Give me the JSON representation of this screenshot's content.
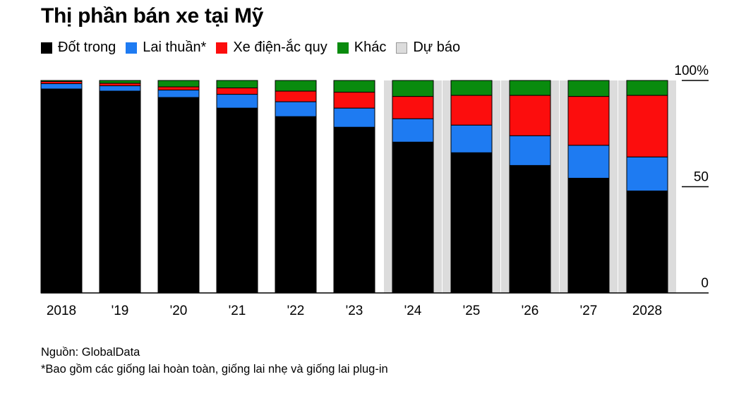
{
  "title": "Thị phần bán xe tại Mỹ",
  "legend": [
    {
      "label": "Đốt trong",
      "color": "#000000"
    },
    {
      "label": "Lai thuần*",
      "color": "#1e7bf2"
    },
    {
      "label": "Xe điện-ắc quy",
      "color": "#fc0d0d"
    },
    {
      "label": "Khác",
      "color": "#098b0e"
    },
    {
      "label": "Dự báo",
      "color": "#dcdcdc"
    }
  ],
  "chart_data": {
    "type": "bar",
    "stacked": true,
    "categories": [
      "2018",
      "'19",
      "'20",
      "'21",
      "'22",
      "'23",
      "'24",
      "'25",
      "'26",
      "'27",
      "2028"
    ],
    "series": [
      {
        "name": "Đốt trong",
        "color": "#000000",
        "values": [
          96,
          95,
          92,
          87,
          83,
          78,
          71,
          66,
          60,
          54,
          48
        ]
      },
      {
        "name": "Lai thuần*",
        "color": "#1e7bf2",
        "values": [
          2.5,
          2.5,
          3.5,
          6.5,
          7,
          9,
          11,
          13,
          14,
          15.5,
          16
        ]
      },
      {
        "name": "Xe điện-ắc quy",
        "color": "#fc0d0d",
        "values": [
          1,
          1.2,
          1.5,
          3,
          5,
          7.5,
          10.5,
          14,
          19,
          23,
          29
        ]
      },
      {
        "name": "Khác",
        "color": "#098b0e",
        "values": [
          0.5,
          1.3,
          3,
          3.5,
          5,
          5.5,
          7.5,
          7,
          7,
          7.5,
          7
        ]
      }
    ],
    "forecast_categories": [
      "'24",
      "'25",
      "'26",
      "'27",
      "2028"
    ],
    "forecast_label": "Dự báo",
    "forecast_color": "#dcdcdc",
    "y_axis": {
      "ticks": [
        0,
        50,
        100
      ],
      "tick_labels": [
        "0",
        "50",
        "100%"
      ],
      "range": [
        0,
        100
      ],
      "position": "right"
    },
    "grid": false,
    "legend_position": "top-left"
  },
  "footer": {
    "source": "Nguồn: GlobalData",
    "note": "*Bao gồm các giống lai hoàn toàn, giống lai nhẹ và giống lai plug-in"
  }
}
